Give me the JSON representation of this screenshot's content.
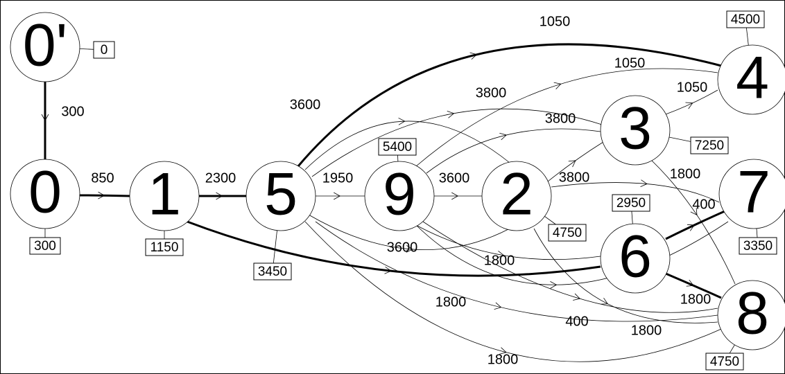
{
  "nodes": [
    {
      "label": "0'",
      "value": 0
    },
    {
      "label": "0",
      "value": 300
    },
    {
      "label": "1",
      "value": 1150
    },
    {
      "label": "5",
      "value": 3450
    },
    {
      "label": "9",
      "value": 5400
    },
    {
      "label": "2",
      "value": 4750
    },
    {
      "label": "3",
      "value": 7250
    },
    {
      "label": "4",
      "value": 4500
    },
    {
      "label": "7",
      "value": 3350
    },
    {
      "label": "6",
      "value": 2950
    },
    {
      "label": "8",
      "value": 4750
    }
  ],
  "edges": [
    {
      "label": 300
    },
    {
      "label": 850
    },
    {
      "label": 2300
    },
    {
      "label": 1950
    },
    {
      "label": 3600
    },
    {
      "label": 1050
    },
    {
      "label": 1050
    },
    {
      "label": 1050
    },
    {
      "label": 3600
    },
    {
      "label": 3800
    },
    {
      "label": 3800
    },
    {
      "label": 3800
    },
    {
      "label": 3600
    },
    {
      "label": 1800
    },
    {
      "label": 1800
    },
    {
      "label": 400
    },
    {
      "label": 400
    },
    {
      "label": 1800
    },
    {
      "label": 1800
    },
    {
      "label": 1800
    },
    {
      "label": 1800
    }
  ]
}
